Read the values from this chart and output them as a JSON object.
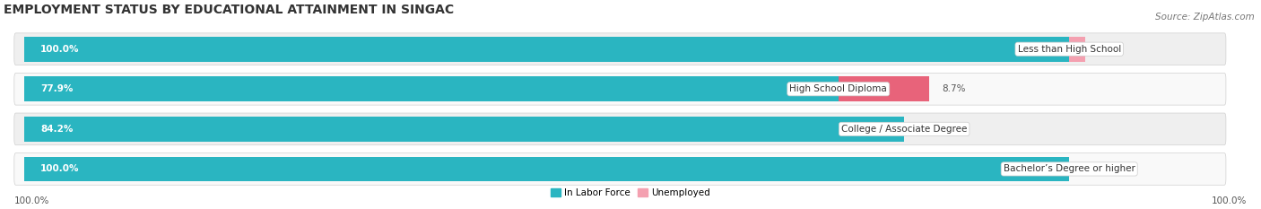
{
  "title": "EMPLOYMENT STATUS BY EDUCATIONAL ATTAINMENT IN SINGAC",
  "source": "Source: ZipAtlas.com",
  "categories": [
    "Less than High School",
    "High School Diploma",
    "College / Associate Degree",
    "Bachelor’s Degree or higher"
  ],
  "labor_force_pct": [
    100.0,
    77.9,
    84.2,
    100.0
  ],
  "unemployed_pct": [
    1.5,
    8.7,
    0.0,
    0.0
  ],
  "labor_force_color": "#2ab5c1",
  "unemployed_color_light": "#f4a0b0",
  "unemployed_color_dark": "#e8637a",
  "row_bg_colors": [
    "#efefef",
    "#f9f9f9",
    "#efefef",
    "#f9f9f9"
  ],
  "title_fontsize": 10,
  "label_fontsize": 7.5,
  "tick_fontsize": 7.5,
  "source_fontsize": 7.5,
  "bar_height": 0.62,
  "x_axis_label_left": "100.0%",
  "x_axis_label_right": "100.0%",
  "legend_entries": [
    "In Labor Force",
    "Unemployed"
  ],
  "legend_colors": [
    "#2ab5c1",
    "#f4a0b0"
  ]
}
